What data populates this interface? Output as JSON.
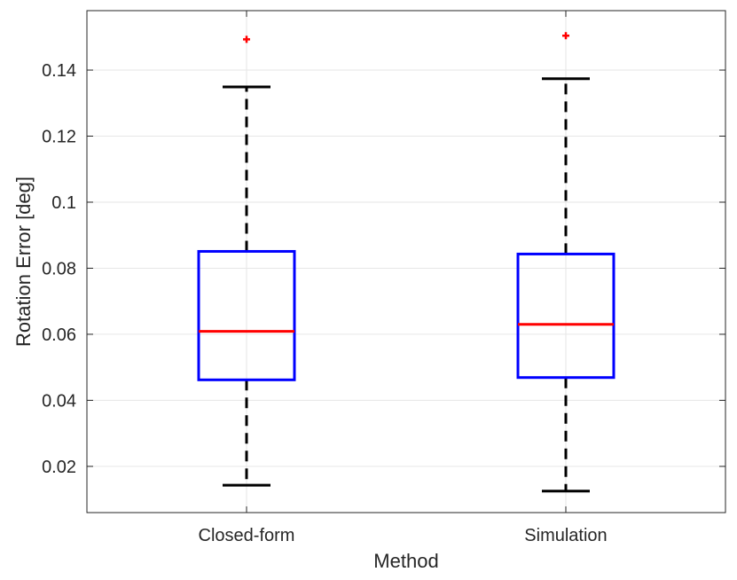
{
  "chart_data": {
    "type": "box",
    "xlabel": "Method",
    "ylabel": "Rotation Error [deg]",
    "categories": [
      "Closed-form",
      "Simulation"
    ],
    "ylim": [
      0.006,
      0.158
    ],
    "yticks": [
      0.02,
      0.04,
      0.06,
      0.08,
      0.1,
      0.12,
      0.14
    ],
    "ytick_labels": [
      "0.02",
      "0.04",
      "0.06",
      "0.08",
      "0.1",
      "0.12",
      "0.14"
    ],
    "grid": true,
    "boxes": [
      {
        "category": "Closed-form",
        "whisker_low": 0.0143,
        "q1": 0.0462,
        "median": 0.0609,
        "q3": 0.0851,
        "whisker_high": 0.1349,
        "outliers": [
          0.1493
        ]
      },
      {
        "category": "Simulation",
        "whisker_low": 0.0125,
        "q1": 0.0469,
        "median": 0.063,
        "q3": 0.0843,
        "whisker_high": 0.1374,
        "outliers": [
          0.1504
        ]
      }
    ],
    "colors": {
      "box": "#0000ff",
      "median": "#ff0000",
      "whisker": "#000000",
      "outlier": "#ff0000",
      "grid": "#e6e6e6",
      "axis": "#262626"
    }
  }
}
